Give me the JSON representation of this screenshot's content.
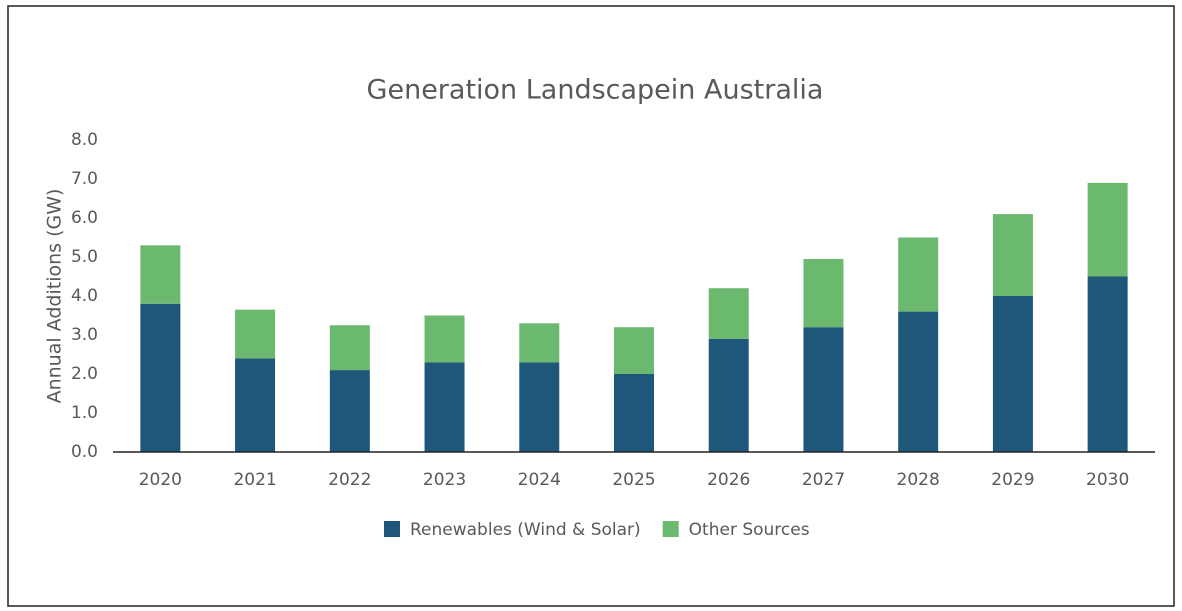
{
  "chart_data": {
    "type": "stacked_bar",
    "title": "Generation Landscapein Australia",
    "y_label": "Annual Additions (GW)",
    "categories": [
      "2020",
      "2021",
      "2022",
      "2023",
      "2024",
      "2025",
      "2026",
      "2027",
      "2028",
      "2029",
      "2030"
    ],
    "series": [
      {
        "name": "Renewables (Wind & Solar)",
        "color": "#1f577b",
        "values": [
          3.8,
          2.4,
          2.1,
          2.3,
          2.3,
          2.0,
          2.9,
          3.2,
          3.6,
          4.0,
          4.5
        ]
      },
      {
        "name": "Other Sources",
        "color": "#6bb86f",
        "values": [
          1.5,
          1.25,
          1.15,
          1.2,
          1.0,
          1.2,
          1.3,
          1.75,
          1.9,
          2.1,
          2.4
        ]
      }
    ],
    "ylim": [
      0,
      8
    ],
    "yticks": [
      {
        "value": 0,
        "label": "0.0"
      },
      {
        "value": 1,
        "label": "1.0"
      },
      {
        "value": 2,
        "label": "2.0"
      },
      {
        "value": 3,
        "label": "3.0"
      },
      {
        "value": 4,
        "label": "4.0"
      },
      {
        "value": 5,
        "label": "5.0"
      },
      {
        "value": 6,
        "label": "6.0"
      },
      {
        "value": 7,
        "label": "7.0"
      },
      {
        "value": 8,
        "label": "8.0"
      }
    ],
    "grid": false,
    "legend": "bottom"
  }
}
